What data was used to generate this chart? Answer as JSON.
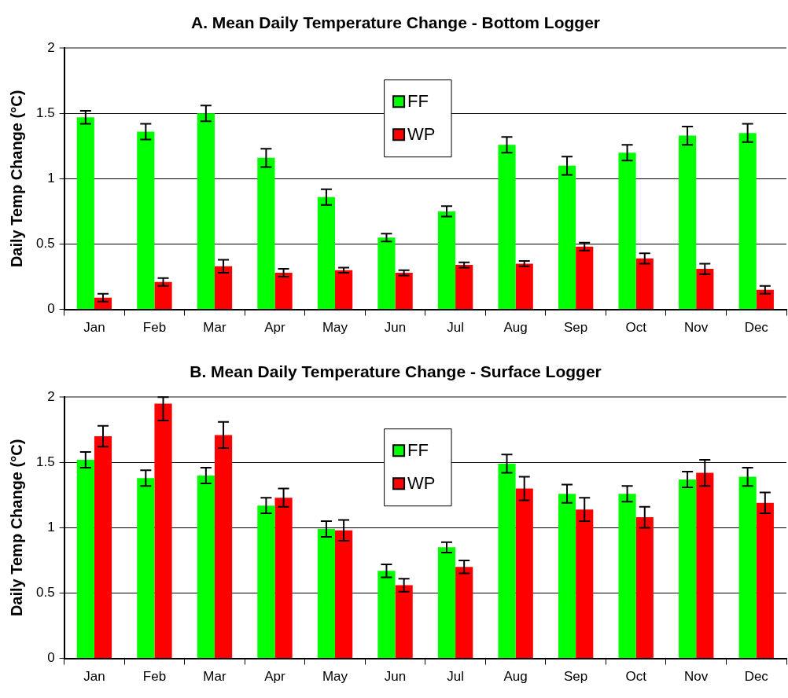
{
  "chart_data": [
    {
      "type": "bar",
      "title": "A. Mean Daily Temperature Change - Bottom Logger",
      "ylabel": "Daily Temp Change (°C)",
      "categories": [
        "Jan",
        "Feb",
        "Mar",
        "Apr",
        "May",
        "Jun",
        "Jul",
        "Aug",
        "Sep",
        "Oct",
        "Nov",
        "Dec"
      ],
      "series": [
        {
          "name": "FF",
          "color": "#00ff00",
          "values": [
            1.47,
            1.36,
            1.5,
            1.16,
            0.86,
            0.55,
            0.75,
            1.26,
            1.1,
            1.2,
            1.33,
            1.35
          ],
          "errors": [
            0.05,
            0.06,
            0.06,
            0.07,
            0.06,
            0.03,
            0.04,
            0.06,
            0.07,
            0.06,
            0.07,
            0.07
          ]
        },
        {
          "name": "WP",
          "color": "#ff0000",
          "values": [
            0.09,
            0.21,
            0.33,
            0.28,
            0.3,
            0.28,
            0.34,
            0.35,
            0.48,
            0.39,
            0.31,
            0.15
          ],
          "errors": [
            0.03,
            0.03,
            0.05,
            0.03,
            0.02,
            0.02,
            0.02,
            0.02,
            0.03,
            0.04,
            0.04,
            0.03
          ]
        }
      ],
      "ylim": [
        0,
        2
      ],
      "yticks": [
        0,
        0.5,
        1,
        1.5,
        2
      ],
      "grid": "y",
      "legend": "top"
    },
    {
      "type": "bar",
      "title": "B. Mean Daily Temperature Change - Surface Logger",
      "ylabel": "Daily Temp Change (°C)",
      "categories": [
        "Jan",
        "Feb",
        "Mar",
        "Apr",
        "May",
        "Jun",
        "Jul",
        "Aug",
        "Sep",
        "Oct",
        "Nov",
        "Dec"
      ],
      "series": [
        {
          "name": "FF",
          "color": "#00ff00",
          "values": [
            1.52,
            1.38,
            1.4,
            1.17,
            0.99,
            0.67,
            0.85,
            1.49,
            1.26,
            1.26,
            1.37,
            1.39
          ],
          "errors": [
            0.06,
            0.06,
            0.06,
            0.06,
            0.06,
            0.05,
            0.04,
            0.07,
            0.07,
            0.06,
            0.06,
            0.07
          ]
        },
        {
          "name": "WP",
          "color": "#ff0000",
          "values": [
            1.7,
            1.95,
            1.71,
            1.23,
            0.98,
            0.56,
            0.7,
            1.3,
            1.14,
            1.08,
            1.42,
            1.19
          ],
          "errors": [
            0.08,
            [
              1.82,
              2.0
            ],
            0.1,
            0.07,
            0.08,
            0.05,
            0.05,
            0.09,
            0.09,
            0.08,
            0.1,
            0.08
          ]
        }
      ],
      "ylim": [
        0,
        2
      ],
      "yticks": [
        0,
        0.5,
        1,
        1.5,
        2
      ],
      "grid": "y",
      "legend": "top"
    }
  ]
}
